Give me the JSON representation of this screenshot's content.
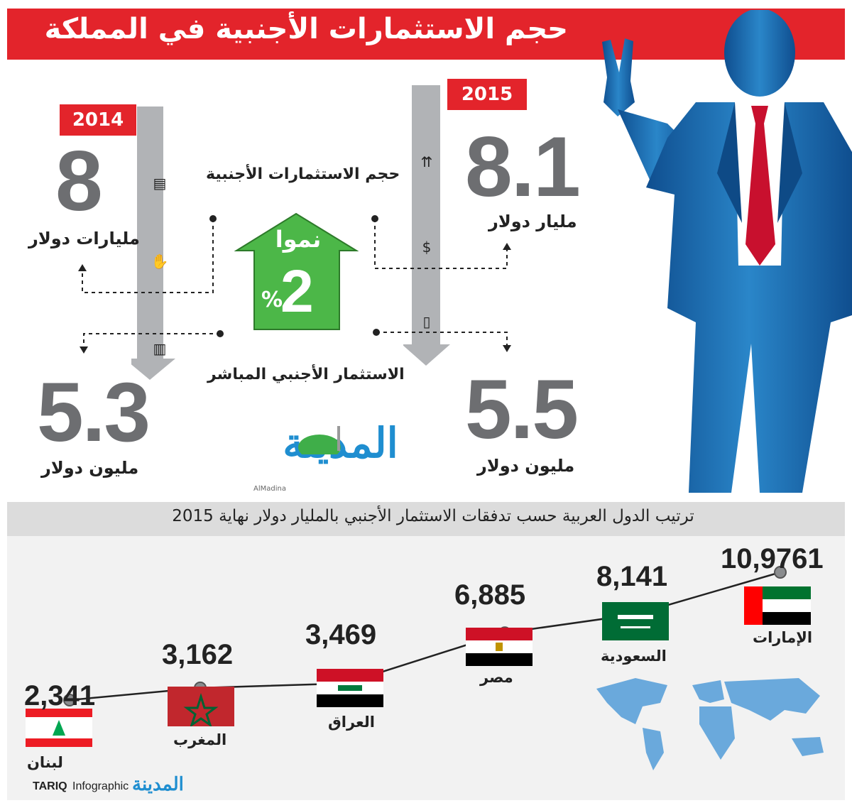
{
  "title": "حجم الاستثمارات الأجنبية في المملكة",
  "left": {
    "year": "2014",
    "total_value": "8",
    "total_unit": "مليارات دولار",
    "fdi_value": "5.3",
    "fdi_unit": "مليون دولار"
  },
  "right": {
    "year": "2015",
    "total_value": "8.1",
    "total_unit": "مليار دولار",
    "fdi_value": "5.5",
    "fdi_unit": "مليون دولار"
  },
  "center": {
    "label_top": "حجم الاستثمارات الأجنبية",
    "label_bottom": "الاستثمار الأجنبي المباشر",
    "growth_word": "نموا",
    "growth_value": "2",
    "growth_percent": "%"
  },
  "logo": {
    "arabic": "المدينة",
    "latin": "AlMadina"
  },
  "footer": {
    "brand": "TARIQ",
    "brand_suffix": "Infographic"
  },
  "icons": [
    "money-stack-icon",
    "handshake-icon",
    "bar-chart-icon",
    "growth-arrows-icon",
    "briefcase-icon",
    "mobile-chart-icon",
    "world-map-icon"
  ],
  "colors": {
    "accent_red": "#e3242b",
    "growth_green": "#4cb748",
    "suit_blue": "#1d6fb8",
    "tie_red": "#c8102e"
  },
  "chart_data": {
    "type": "line",
    "title": "ترتيب الدول العربية حسب تدفقات الاستثمار الأجنبي بالمليار دولار  نهاية 2015",
    "categories": [
      "لبنان",
      "المغرب",
      "العراق",
      "مصر",
      "السعودية",
      "الإمارات"
    ],
    "value_labels": [
      "2,341",
      "3,162",
      "3,469",
      "6,885",
      "8,141",
      "10,9761"
    ],
    "values": [
      2.341,
      3.162,
      3.469,
      6.885,
      8.141,
      10.976
    ],
    "xlabel": "",
    "ylabel": "",
    "grid": false,
    "legend": "none"
  }
}
